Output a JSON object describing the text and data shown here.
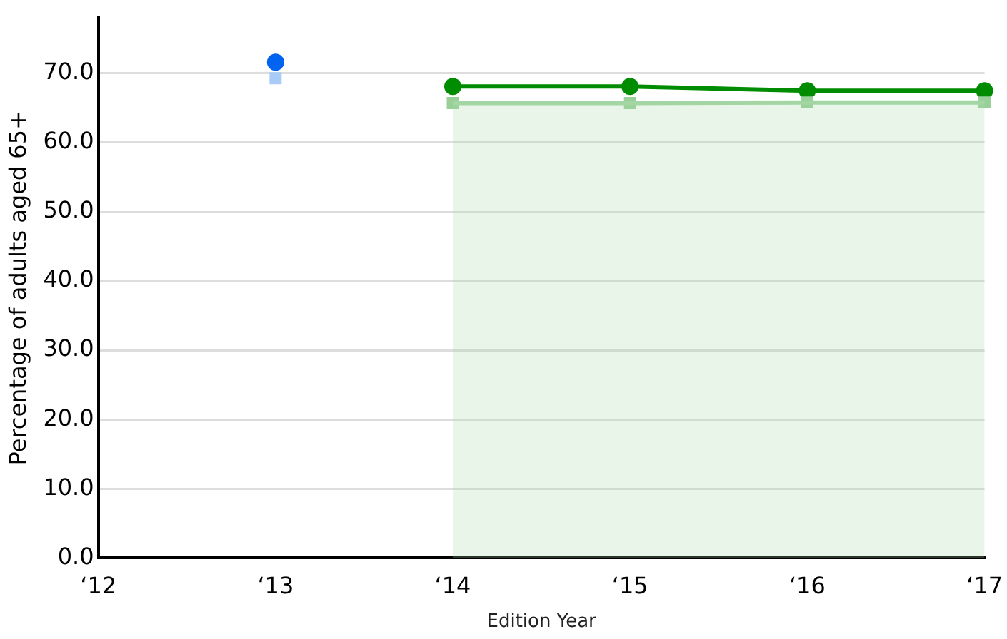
{
  "chart_data": {
    "type": "line",
    "xlabel": "Edition Year",
    "ylabel": "Percentage of adults aged 65+",
    "categories": [
      "‘12",
      "‘13",
      "‘14",
      "‘15",
      "‘16",
      "‘17"
    ],
    "ylim": [
      0,
      78
    ],
    "yticks": [
      {
        "value": 0,
        "label": "0.0"
      },
      {
        "value": 10,
        "label": "10.0"
      },
      {
        "value": 20,
        "label": "20.0"
      },
      {
        "value": 30,
        "label": "30.0"
      },
      {
        "value": 40,
        "label": "40.0"
      },
      {
        "value": 50,
        "label": "50.0"
      },
      {
        "value": 60,
        "label": "60.0"
      },
      {
        "value": 70,
        "label": "70.0"
      }
    ],
    "grid": "y",
    "legend": false,
    "series": [
      {
        "type": "area",
        "color": "#a3d6a3",
        "values": [
          null,
          null,
          65.7,
          65.7,
          65.8,
          65.8
        ]
      },
      {
        "type": "scatter",
        "color": "#99cf99",
        "marker": "square",
        "values": [
          null,
          null,
          65.7,
          65.7,
          65.8,
          65.8
        ]
      },
      {
        "type": "scatter",
        "color": "#a9cbf7",
        "marker": "square",
        "values": [
          null,
          69.3,
          null,
          null,
          null,
          null
        ]
      },
      {
        "color": "#008c00",
        "marker": "circle",
        "values": [
          null,
          null,
          68.1,
          68.1,
          67.5,
          67.5
        ]
      },
      {
        "type": "scatter",
        "color": "#0064f0",
        "marker": "circle",
        "values": [
          null,
          71.6,
          null,
          null,
          null,
          null
        ]
      }
    ]
  }
}
